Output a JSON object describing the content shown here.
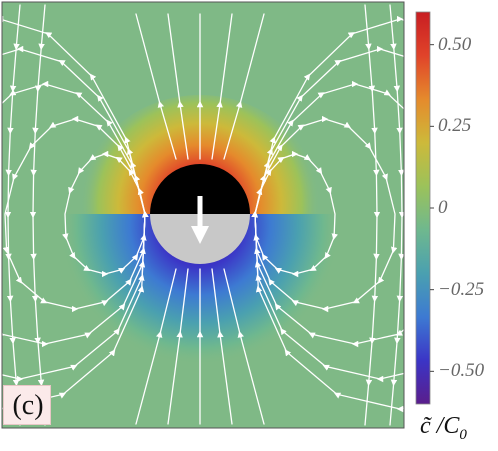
{
  "panel": {
    "label": "(c)"
  },
  "colorbar": {
    "range": [
      -0.6,
      0.6
    ],
    "ticks": [
      {
        "value": 0.5,
        "label": "0.50"
      },
      {
        "value": 0.25,
        "label": "0.25"
      },
      {
        "value": 0,
        "label": "0"
      },
      {
        "value": -0.25,
        "label": "−0.25"
      },
      {
        "value": -0.5,
        "label": "−0.50"
      }
    ],
    "title_main": "c̃ /C",
    "title_sub": "0",
    "colors": [
      "#5a1e8c",
      "#3b35c6",
      "#3d7ad2",
      "#4aa0b0",
      "#6fb88e",
      "#9cc25a",
      "#cdb93a",
      "#e58a2c",
      "#e0432a",
      "#c81e22"
    ]
  },
  "particle": {
    "top_color": "#000000",
    "bottom_color": "#c8c8c8",
    "arrow_color": "#ffffff",
    "direction": "down"
  },
  "field": {
    "base_color": "#7fb986",
    "streamline_color": "#ffffff"
  }
}
